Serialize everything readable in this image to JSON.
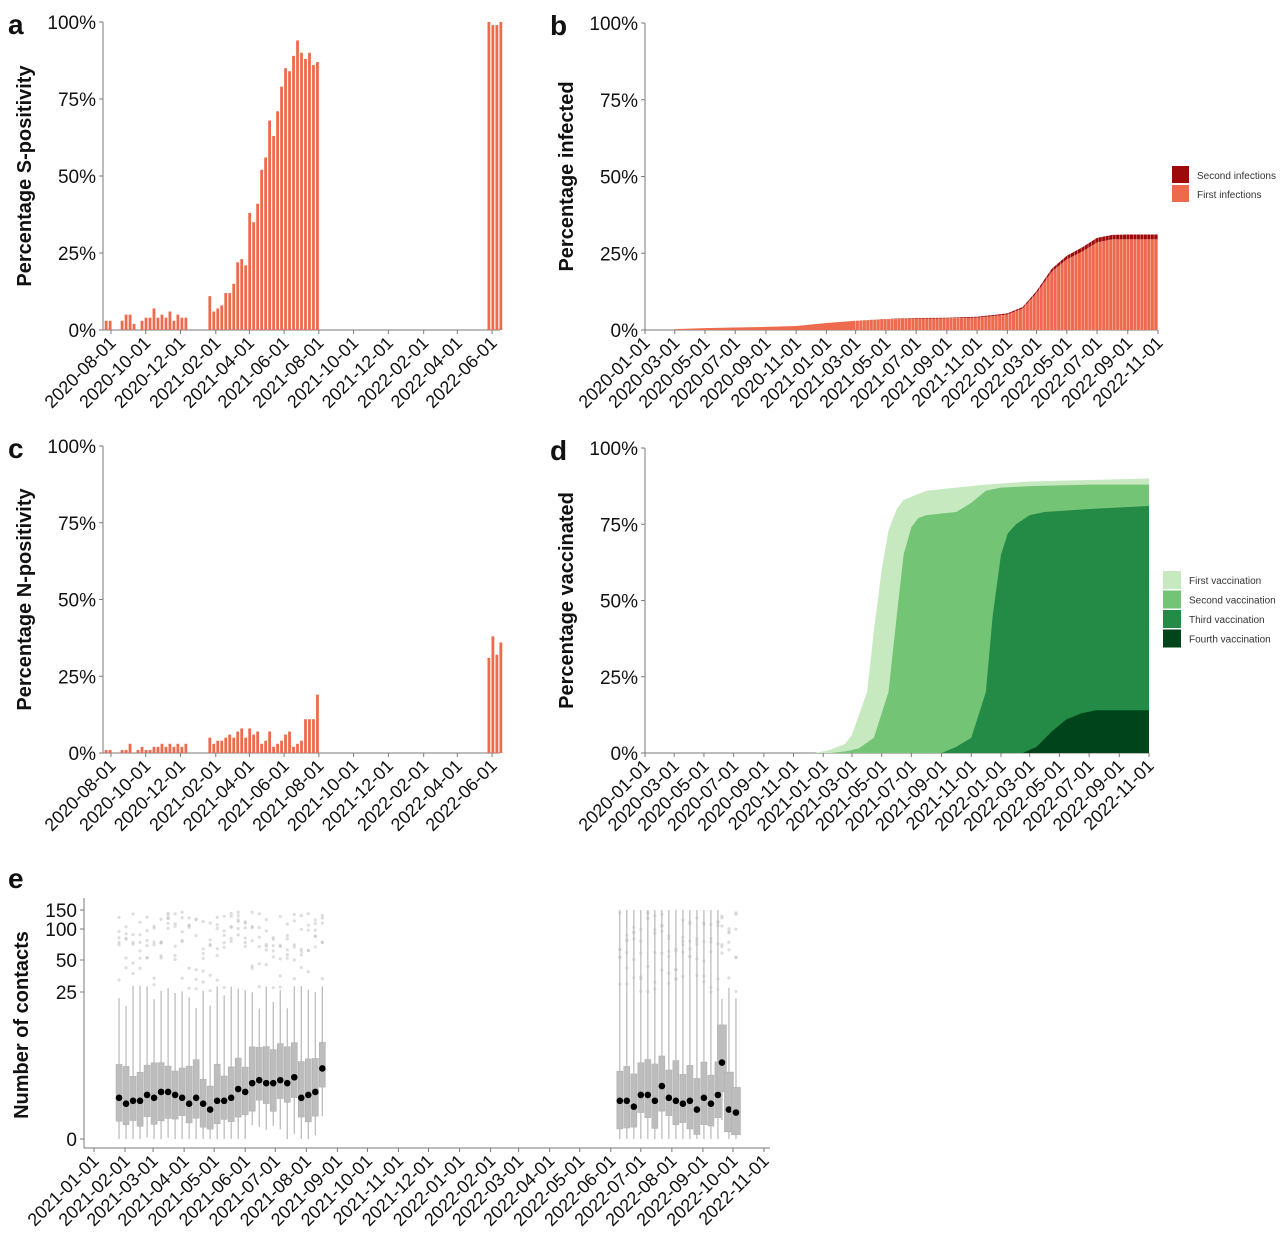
{
  "colors": {
    "positivity_bar": "#ee6a4f",
    "first_infection": "#ee6a4f",
    "second_infection": "#9e0a0a",
    "first_vaccination": "#c7e9c0",
    "second_vaccination": "#74c476",
    "third_vaccination": "#238b45",
    "fourth_vaccination": "#00441b",
    "box": "#bdbdbd",
    "median_dot": "#000000"
  },
  "chart_data": [
    {
      "panel": "a",
      "type": "bar",
      "ylabel": "Percentage S-positivity",
      "xlabel": "",
      "ylim": [
        0,
        100
      ],
      "yticks": [
        "0%",
        "25%",
        "50%",
        "75%",
        "100%"
      ],
      "xticks": [
        "2020-08-01",
        "2020-10-01",
        "2020-12-01",
        "2021-02-01",
        "2021-04-01",
        "2021-06-01",
        "2021-08-01",
        "2021-10-01",
        "2021-12-01",
        "2022-02-01",
        "2022-04-01",
        "2022-06-01"
      ],
      "series": [
        {
          "x_start": "2020-07-20",
          "step_days": 7,
          "values": [
            3,
            3,
            0,
            0,
            3,
            5,
            5,
            2,
            0,
            3,
            4,
            4,
            7,
            4,
            5,
            4,
            6,
            3,
            5,
            4,
            4,
            0,
            0,
            0,
            0,
            0,
            11,
            6,
            7,
            8,
            12,
            12,
            15,
            22,
            23,
            21,
            38,
            35,
            41,
            52,
            56,
            68,
            63,
            71,
            79,
            85,
            84,
            89,
            94,
            90,
            88,
            90,
            86,
            87
          ]
        },
        {
          "x_start": "2022-05-23",
          "step_days": 7,
          "values": [
            100,
            99,
            99,
            100
          ]
        }
      ]
    },
    {
      "panel": "b",
      "type": "area",
      "ylabel": "Percentage infected",
      "xlabel": "",
      "ylim": [
        0,
        100
      ],
      "yticks": [
        "0%",
        "25%",
        "50%",
        "75%",
        "100%"
      ],
      "xticks": [
        "2020-01-01",
        "2020-03-01",
        "2020-05-01",
        "2020-07-01",
        "2020-09-01",
        "2020-11-01",
        "2021-01-01",
        "2021-03-01",
        "2021-05-01",
        "2021-07-01",
        "2021-09-01",
        "2021-11-01",
        "2022-01-01",
        "2022-03-01",
        "2022-05-01",
        "2022-07-01",
        "2022-09-01",
        "2022-11-01"
      ],
      "legend": [
        "Second infections",
        "First infections"
      ],
      "legend_position": "right",
      "x": [
        "2020-03-01",
        "2020-05-01",
        "2020-07-01",
        "2020-09-01",
        "2020-11-01",
        "2021-01-01",
        "2021-03-01",
        "2021-05-01",
        "2021-07-01",
        "2021-09-01",
        "2021-11-01",
        "2022-01-01",
        "2022-02-01",
        "2022-03-01",
        "2022-04-01",
        "2022-05-01",
        "2022-06-01",
        "2022-07-01",
        "2022-08-01",
        "2022-09-01",
        "2022-10-01",
        "2022-11-01"
      ],
      "series": [
        {
          "name": "First infections",
          "values": [
            0.3,
            0.6,
            0.8,
            1,
            1.3,
            2.3,
            3,
            3.5,
            3.7,
            3.8,
            4,
            5,
            7,
            12,
            19,
            23,
            25.5,
            28.5,
            29.5,
            29.5,
            29.5,
            29.5
          ]
        },
        {
          "name": "Second infections",
          "values": [
            0,
            0,
            0,
            0,
            0,
            0,
            0,
            0.1,
            0.2,
            0.2,
            0.3,
            0.4,
            0.5,
            0.7,
            1,
            1.2,
            1.4,
            1.5,
            1.5,
            1.6,
            1.6,
            1.6
          ]
        }
      ]
    },
    {
      "panel": "c",
      "type": "bar",
      "ylabel": "Percentage N-positivity",
      "xlabel": "",
      "ylim": [
        0,
        100
      ],
      "yticks": [
        "0%",
        "25%",
        "50%",
        "75%",
        "100%"
      ],
      "xticks": [
        "2020-08-01",
        "2020-10-01",
        "2020-12-01",
        "2021-02-01",
        "2021-04-01",
        "2021-06-01",
        "2021-08-01",
        "2021-10-01",
        "2021-12-01",
        "2022-02-01",
        "2022-04-01",
        "2022-06-01"
      ],
      "series": [
        {
          "x_start": "2020-07-20",
          "step_days": 7,
          "values": [
            1,
            1,
            0,
            0,
            1,
            1,
            3,
            0,
            1,
            2,
            1,
            1,
            2,
            2,
            3,
            2,
            3,
            2,
            3,
            2,
            3,
            0,
            0,
            0,
            0,
            0,
            5,
            3,
            4,
            4,
            5,
            6,
            5,
            7,
            8,
            5,
            8,
            6,
            7,
            3,
            4,
            7,
            2,
            3,
            4,
            6,
            7,
            2,
            3,
            4,
            11,
            11,
            11,
            19
          ]
        },
        {
          "x_start": "2022-05-23",
          "step_days": 7,
          "values": [
            31,
            38,
            32,
            36
          ]
        }
      ]
    },
    {
      "panel": "d",
      "type": "area",
      "ylabel": "Percentage vaccinated",
      "xlabel": "",
      "ylim": [
        0,
        100
      ],
      "yticks": [
        "0%",
        "25%",
        "50%",
        "75%",
        "100%"
      ],
      "xticks": [
        "2020-01-01",
        "2020-03-01",
        "2020-05-01",
        "2020-07-01",
        "2020-09-01",
        "2020-11-01",
        "2021-01-01",
        "2021-03-01",
        "2021-05-01",
        "2021-07-01",
        "2021-09-01",
        "2021-11-01",
        "2022-01-01",
        "2022-03-01",
        "2022-05-01",
        "2022-07-01",
        "2022-09-01",
        "2022-11-01"
      ],
      "legend": [
        "First vaccination",
        "Second vaccination",
        "Third vaccination",
        "Fourth vaccination"
      ],
      "legend_position": "right",
      "series": [
        {
          "name": "First vaccination",
          "x": [
            "2020-12-15",
            "2021-01-15",
            "2021-02-15",
            "2021-03-01",
            "2021-04-01",
            "2021-04-15",
            "2021-05-01",
            "2021-05-15",
            "2021-06-01",
            "2021-06-15",
            "2021-07-01",
            "2021-08-01",
            "2021-10-01",
            "2021-12-01",
            "2022-03-01",
            "2022-07-01",
            "2022-11-01"
          ],
          "values": [
            0,
            1,
            3,
            6,
            20,
            40,
            60,
            73,
            80,
            83,
            84,
            86,
            87,
            88,
            89,
            89.5,
            90
          ]
        },
        {
          "name": "Second vaccination",
          "x": [
            "2021-01-15",
            "2021-02-15",
            "2021-03-15",
            "2021-04-15",
            "2021-05-15",
            "2021-06-01",
            "2021-06-15",
            "2021-07-01",
            "2021-07-15",
            "2021-08-01",
            "2021-10-01",
            "2021-11-01",
            "2021-12-01",
            "2022-01-01",
            "2022-03-01",
            "2022-07-01",
            "2022-11-01"
          ],
          "values": [
            0,
            0.5,
            1.5,
            5,
            20,
            45,
            65,
            74,
            77,
            78,
            79,
            82,
            86,
            87,
            87.5,
            88,
            88
          ]
        },
        {
          "name": "Third vaccination",
          "x": [
            "2021-09-01",
            "2021-10-01",
            "2021-11-01",
            "2021-12-01",
            "2021-12-15",
            "2022-01-01",
            "2022-01-15",
            "2022-02-01",
            "2022-03-01",
            "2022-04-01",
            "2022-07-01",
            "2022-11-01"
          ],
          "values": [
            0,
            2,
            5,
            20,
            45,
            65,
            72,
            75,
            78,
            79,
            80,
            81
          ]
        },
        {
          "name": "Fourth vaccination",
          "x": [
            "2022-02-15",
            "2022-03-15",
            "2022-04-15",
            "2022-05-15",
            "2022-06-15",
            "2022-07-15",
            "2022-11-01"
          ],
          "values": [
            0,
            2,
            7,
            11,
            13,
            14,
            14
          ]
        }
      ]
    },
    {
      "panel": "e",
      "type": "box",
      "ylabel": "Number of contacts",
      "xlabel": "",
      "yscale": "sqrt-like",
      "yticks": [
        "0",
        "25",
        "50",
        "100",
        "150"
      ],
      "xticks": [
        "2021-01-01",
        "2021-02-01",
        "2021-03-01",
        "2021-04-01",
        "2021-05-01",
        "2021-06-01",
        "2021-07-01",
        "2021-08-01",
        "2021-09-01",
        "2021-10-01",
        "2021-11-01",
        "2021-12-01",
        "2022-01-01",
        "2022-02-01",
        "2022-03-01",
        "2022-04-01",
        "2022-05-01",
        "2022-06-01",
        "2022-07-01",
        "2022-08-01",
        "2022-09-01",
        "2022-10-01",
        "2022-11-01"
      ],
      "groups": [
        {
          "x_start": "2021-01-26",
          "step_days": 7,
          "medians": [
            7,
            6,
            6.5,
            6.5,
            7.5,
            7,
            8,
            8,
            7.5,
            7,
            6,
            7,
            6,
            5,
            6.5,
            6.5,
            7,
            8.5,
            8,
            9.5,
            10,
            9.5,
            9.5,
            10,
            9.5,
            10.5,
            7,
            7.5,
            8,
            12
          ]
        },
        {
          "x_start": "2022-06-10",
          "step_days": 7,
          "medians": [
            6.5,
            6.5,
            5.5,
            7.5,
            7.5,
            6.5,
            9,
            7,
            6.5,
            6,
            6.5,
            5,
            7,
            6,
            7.5
          ]
        },
        {
          "x_start": "2022-09-20",
          "step_days": 7,
          "medians": [
            13,
            5,
            4.5
          ]
        }
      ]
    }
  ]
}
